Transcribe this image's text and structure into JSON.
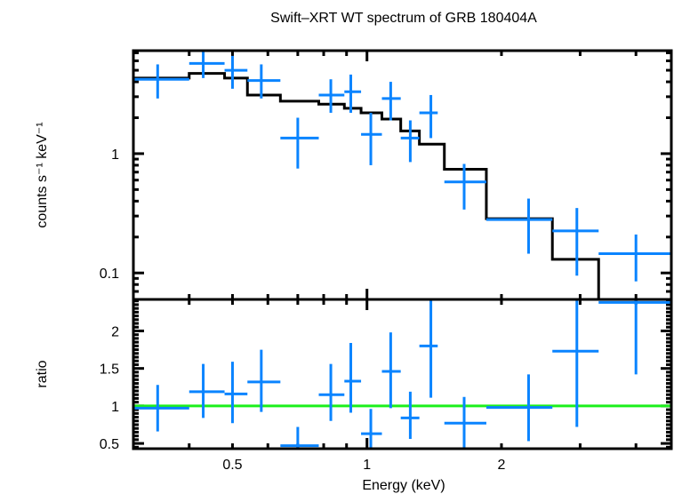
{
  "chart_data": [
    {
      "panel": "spectrum",
      "type": "scatter",
      "title": "Swift–XRT WT spectrum of GRB 180404A",
      "xlabel": "",
      "ylabel": "counts s⁻¹ keV⁻¹",
      "xscale": "log",
      "yscale": "log",
      "xlim": [
        0.3,
        4.8
      ],
      "ylim": [
        0.06,
        7.3
      ],
      "yticks": [
        {
          "value": 0.1,
          "label": "0.1"
        },
        {
          "value": 1,
          "label": "1"
        }
      ],
      "grid": false,
      "series": [
        {
          "name": "data",
          "color": "#0a84ff",
          "points": [
            {
              "x": 0.34,
              "xlo": 0.3,
              "xhi": 0.4,
              "y": 4.2,
              "ylo": 2.9,
              "yhi": 5.6
            },
            {
              "x": 0.43,
              "xlo": 0.4,
              "xhi": 0.48,
              "y": 5.7,
              "ylo": 4.3,
              "yhi": 7.3
            },
            {
              "x": 0.5,
              "xlo": 0.48,
              "xhi": 0.54,
              "y": 5.0,
              "ylo": 3.5,
              "yhi": 6.6
            },
            {
              "x": 0.58,
              "xlo": 0.54,
              "xhi": 0.64,
              "y": 4.1,
              "ylo": 2.9,
              "yhi": 5.6
            },
            {
              "x": 0.7,
              "xlo": 0.64,
              "xhi": 0.78,
              "y": 1.35,
              "ylo": 0.75,
              "yhi": 2.0
            },
            {
              "x": 0.83,
              "xlo": 0.78,
              "xhi": 0.89,
              "y": 3.1,
              "ylo": 2.2,
              "yhi": 4.2
            },
            {
              "x": 0.92,
              "xlo": 0.89,
              "xhi": 0.97,
              "y": 3.3,
              "ylo": 2.2,
              "yhi": 4.6
            },
            {
              "x": 1.02,
              "xlo": 0.97,
              "xhi": 1.08,
              "y": 1.45,
              "ylo": 0.8,
              "yhi": 2.2
            },
            {
              "x": 1.13,
              "xlo": 1.08,
              "xhi": 1.19,
              "y": 2.9,
              "ylo": 1.9,
              "yhi": 4.0
            },
            {
              "x": 1.25,
              "xlo": 1.19,
              "xhi": 1.31,
              "y": 1.35,
              "ylo": 0.85,
              "yhi": 1.9
            },
            {
              "x": 1.39,
              "xlo": 1.31,
              "xhi": 1.44,
              "y": 2.2,
              "ylo": 1.35,
              "yhi": 3.1
            },
            {
              "x": 1.65,
              "xlo": 1.49,
              "xhi": 1.85,
              "y": 0.58,
              "ylo": 0.34,
              "yhi": 0.82
            },
            {
              "x": 2.3,
              "xlo": 1.85,
              "xhi": 2.6,
              "y": 0.28,
              "ylo": 0.145,
              "yhi": 0.42
            },
            {
              "x": 2.95,
              "xlo": 2.6,
              "xhi": 3.3,
              "y": 0.225,
              "ylo": 0.095,
              "yhi": 0.35
            },
            {
              "x": 4.0,
              "xlo": 3.3,
              "xhi": 4.8,
              "y": 0.145,
              "ylo": 0.085,
              "yhi": 0.21
            }
          ]
        },
        {
          "name": "model",
          "type": "step",
          "color": "#000000",
          "steps": [
            {
              "xlo": 0.3,
              "xhi": 0.4,
              "y": 4.3
            },
            {
              "xlo": 0.4,
              "xhi": 0.48,
              "y": 4.7
            },
            {
              "xlo": 0.48,
              "xhi": 0.54,
              "y": 4.3
            },
            {
              "xlo": 0.54,
              "xhi": 0.64,
              "y": 3.1
            },
            {
              "xlo": 0.64,
              "xhi": 0.78,
              "y": 2.75
            },
            {
              "xlo": 0.78,
              "xhi": 0.89,
              "y": 2.6
            },
            {
              "xlo": 0.89,
              "xhi": 0.97,
              "y": 2.4
            },
            {
              "xlo": 0.97,
              "xhi": 1.08,
              "y": 2.2
            },
            {
              "xlo": 1.08,
              "xhi": 1.19,
              "y": 1.95
            },
            {
              "xlo": 1.19,
              "xhi": 1.31,
              "y": 1.55
            },
            {
              "xlo": 1.31,
              "xhi": 1.49,
              "y": 1.2
            },
            {
              "xlo": 1.49,
              "xhi": 1.85,
              "y": 0.74
            },
            {
              "xlo": 1.85,
              "xhi": 2.6,
              "y": 0.285
            },
            {
              "xlo": 2.6,
              "xhi": 3.3,
              "y": 0.13
            },
            {
              "xlo": 3.3,
              "xhi": 4.8,
              "y": 0.05
            }
          ]
        }
      ]
    },
    {
      "panel": "ratio",
      "type": "scatter",
      "title": "",
      "xlabel": "Energy (keV)",
      "ylabel": "ratio",
      "xscale": "log",
      "yscale": "linear",
      "xlim": [
        0.3,
        4.8
      ],
      "ylim": [
        0.43,
        2.42
      ],
      "xticks": [
        {
          "value": 0.5,
          "label": "0.5"
        },
        {
          "value": 1,
          "label": "1"
        },
        {
          "value": 2,
          "label": "2"
        }
      ],
      "yticks": [
        {
          "value": 0.5,
          "label": "0.5"
        },
        {
          "value": 1,
          "label": "1"
        },
        {
          "value": 1.5,
          "label": "1.5"
        },
        {
          "value": 2,
          "label": "2"
        }
      ],
      "grid": false,
      "reference_line": {
        "y": 1,
        "color": "#1cf01c"
      },
      "series": [
        {
          "name": "ratio",
          "color": "#0a84ff",
          "points": [
            {
              "x": 0.34,
              "xlo": 0.3,
              "xhi": 0.4,
              "y": 0.97,
              "ylo": 0.66,
              "yhi": 1.28
            },
            {
              "x": 0.43,
              "xlo": 0.4,
              "xhi": 0.48,
              "y": 1.19,
              "ylo": 0.84,
              "yhi": 1.56
            },
            {
              "x": 0.5,
              "xlo": 0.48,
              "xhi": 0.54,
              "y": 1.16,
              "ylo": 0.77,
              "yhi": 1.59
            },
            {
              "x": 0.58,
              "xlo": 0.54,
              "xhi": 0.64,
              "y": 1.32,
              "ylo": 0.92,
              "yhi": 1.75
            },
            {
              "x": 0.7,
              "xlo": 0.64,
              "xhi": 0.78,
              "y": 0.47,
              "ylo": 0.43,
              "yhi": 0.72
            },
            {
              "x": 0.83,
              "xlo": 0.78,
              "xhi": 0.89,
              "y": 1.15,
              "ylo": 0.8,
              "yhi": 1.56
            },
            {
              "x": 0.92,
              "xlo": 0.89,
              "xhi": 0.97,
              "y": 1.33,
              "ylo": 0.91,
              "yhi": 1.84
            },
            {
              "x": 1.02,
              "xlo": 0.97,
              "xhi": 1.08,
              "y": 0.63,
              "ylo": 0.43,
              "yhi": 0.96
            },
            {
              "x": 1.13,
              "xlo": 1.08,
              "xhi": 1.19,
              "y": 1.46,
              "ylo": 0.97,
              "yhi": 1.98
            },
            {
              "x": 1.25,
              "xlo": 1.19,
              "xhi": 1.31,
              "y": 0.84,
              "ylo": 0.56,
              "yhi": 1.19
            },
            {
              "x": 1.39,
              "xlo": 1.31,
              "xhi": 1.44,
              "y": 1.8,
              "ylo": 1.11,
              "yhi": 2.42
            },
            {
              "x": 1.65,
              "xlo": 1.49,
              "xhi": 1.85,
              "y": 0.77,
              "ylo": 0.43,
              "yhi": 1.12
            },
            {
              "x": 2.3,
              "xlo": 1.85,
              "xhi": 2.6,
              "y": 0.98,
              "ylo": 0.53,
              "yhi": 1.42
            },
            {
              "x": 2.95,
              "xlo": 2.6,
              "xhi": 3.3,
              "y": 1.73,
              "ylo": 0.72,
              "yhi": 2.42
            },
            {
              "x": 4.0,
              "xlo": 3.3,
              "xhi": 4.8,
              "y": 2.38,
              "ylo": 1.42,
              "yhi": 2.42
            }
          ]
        }
      ]
    }
  ]
}
